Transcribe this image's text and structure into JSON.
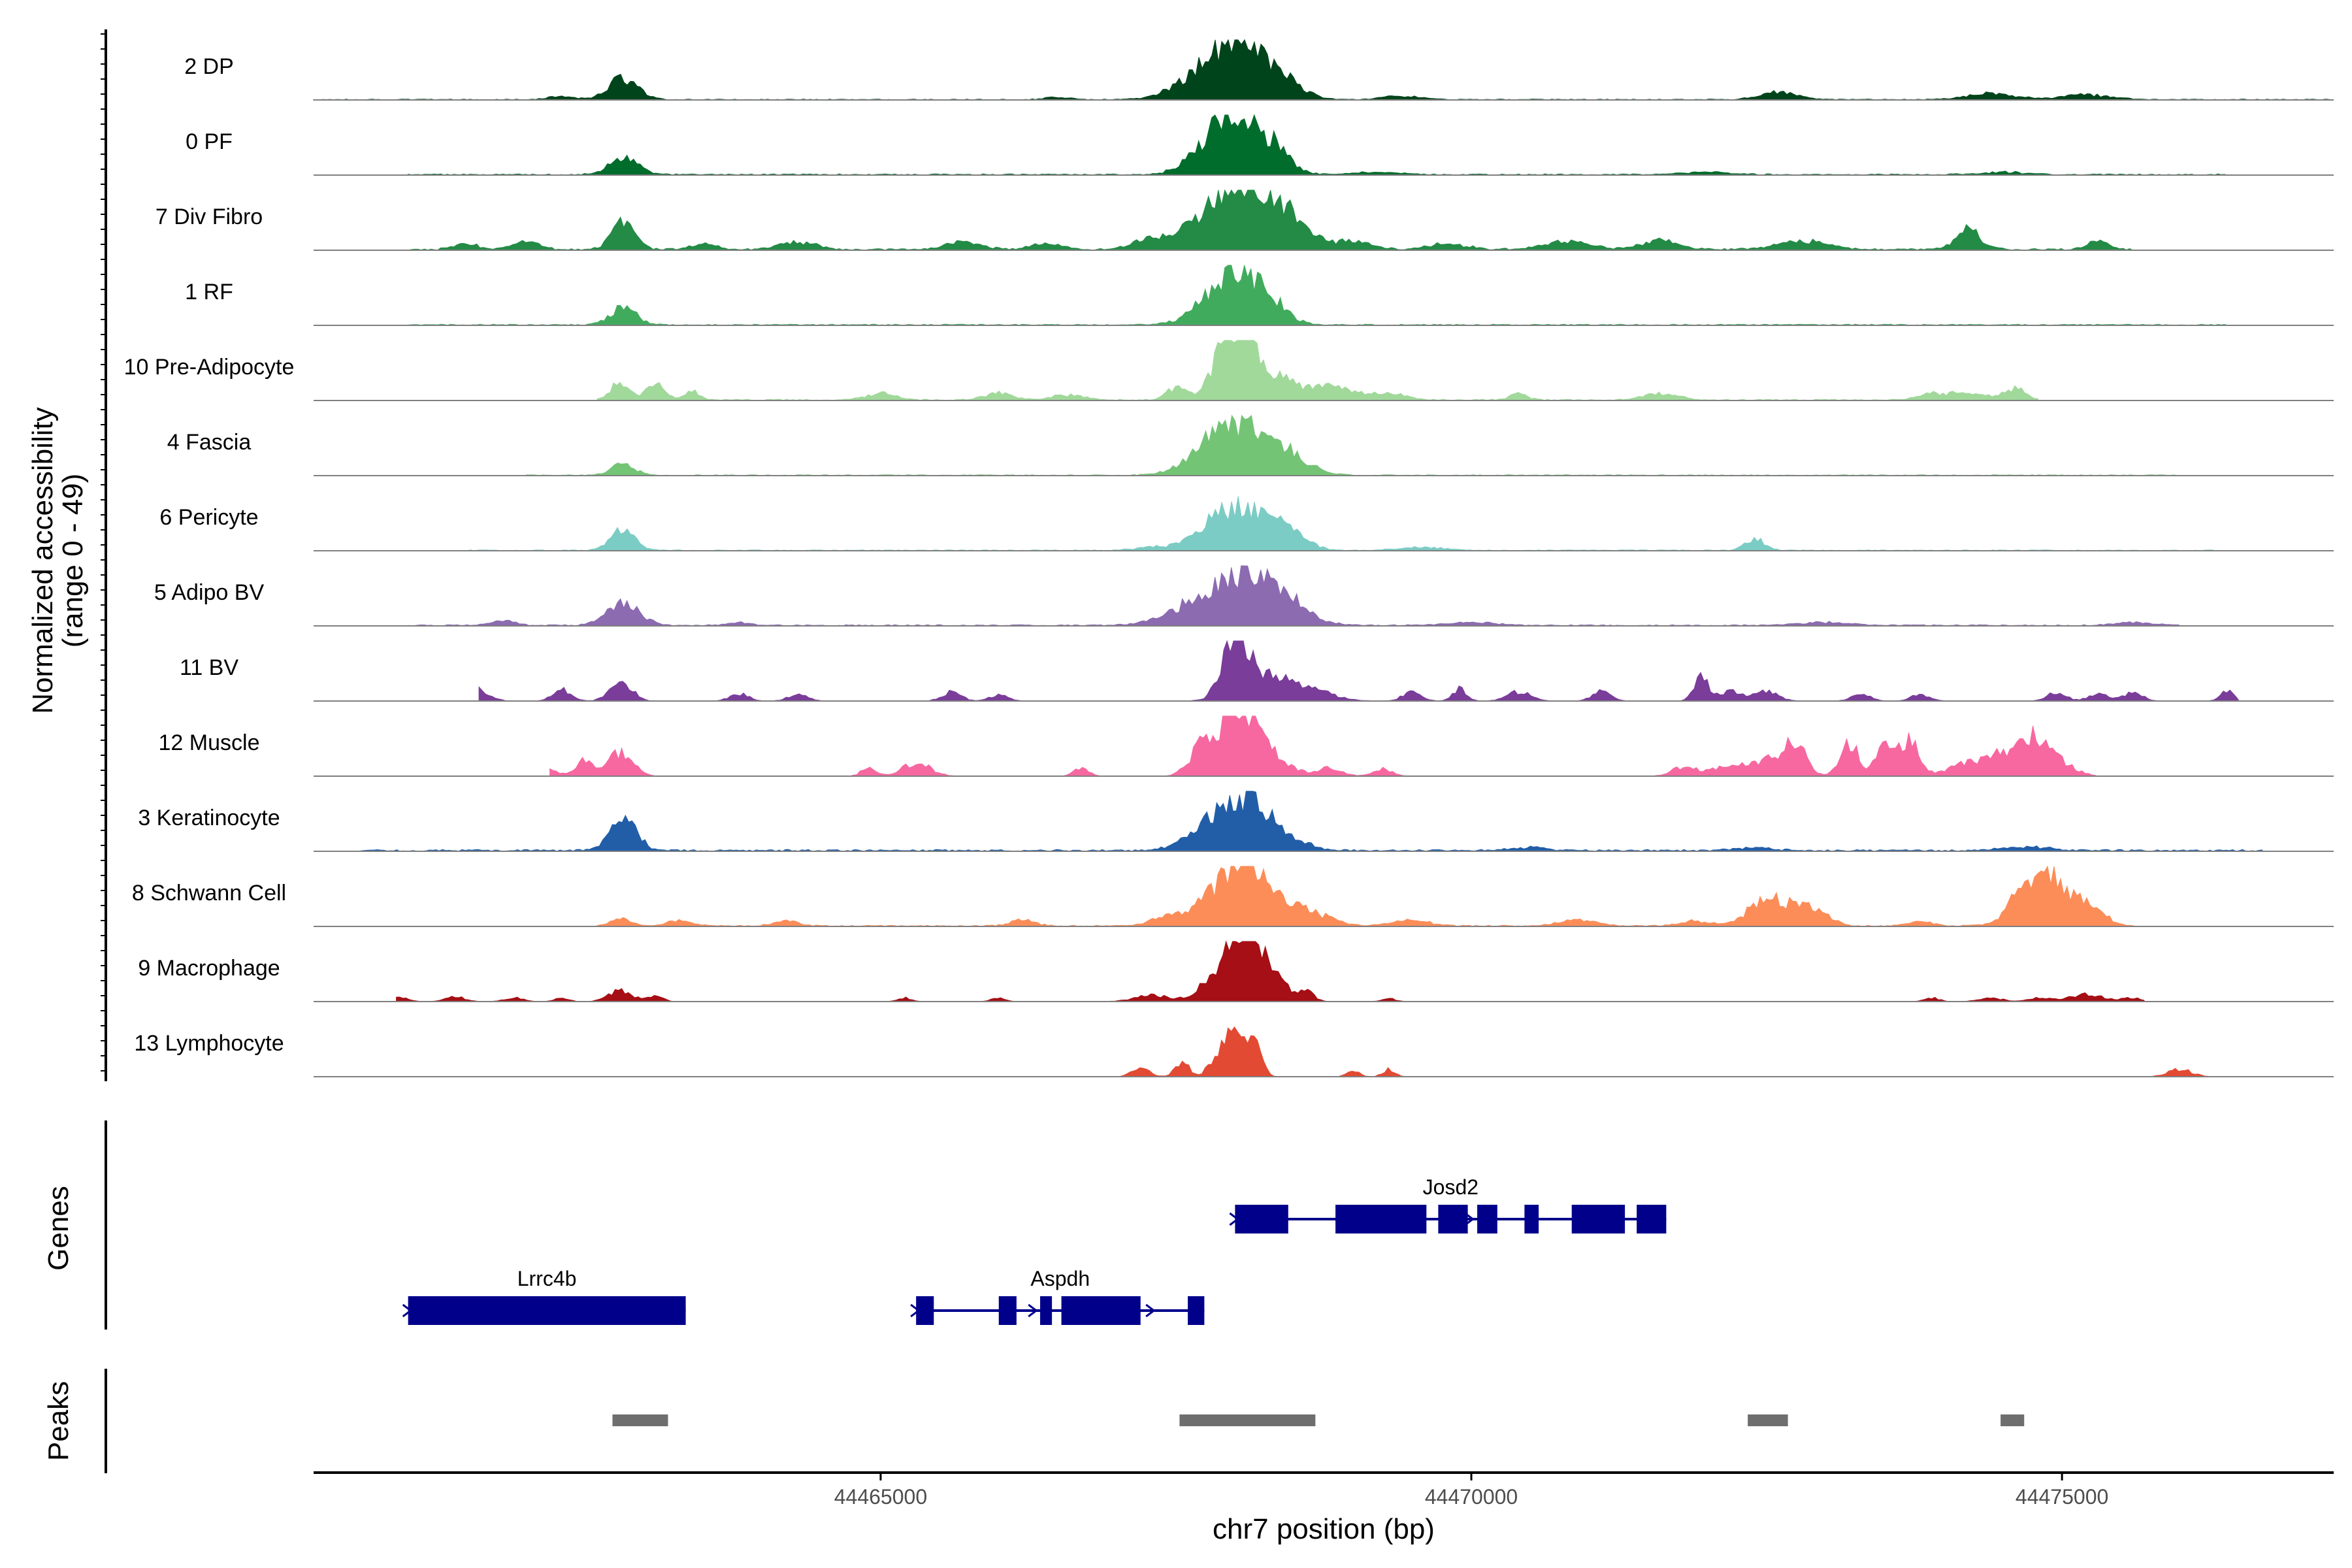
{
  "chart_data": {
    "type": "area",
    "chromosome": "chr7",
    "xlabel": "chr7 position (bp)",
    "ylabel_line1": "Normalized accessibility",
    "ylabel_line2": "(range 0 - 49)",
    "y_range": [
      0,
      49
    ],
    "xlim": [
      44460200,
      44477300
    ],
    "x_ticks": [
      44465000,
      44470000,
      44475000
    ],
    "x_tick_labels": [
      "44465000",
      "44470000",
      "44475000"
    ],
    "panel_labels": {
      "genes": "Genes",
      "peaks": "Peaks"
    },
    "tracks": [
      {
        "name": "2 DP",
        "color": "#00441b",
        "peaks": [
          [
            44462820,
            120,
            0.36
          ],
          [
            44468000,
            260,
            0.95
          ],
          [
            44468400,
            150,
            0.25
          ],
          [
            44467600,
            200,
            0.12
          ],
          [
            44469400,
            150,
            0.06
          ],
          [
            44472600,
            150,
            0.12
          ],
          [
            44474400,
            200,
            0.1
          ],
          [
            44475200,
            200,
            0.08
          ],
          [
            44462300,
            100,
            0.06
          ],
          [
            44466500,
            100,
            0.04
          ]
        ],
        "noise": 0.015,
        "span": [
          44460200,
          44477300
        ]
      },
      {
        "name": "0 PF",
        "color": "#006d2c",
        "peaks": [
          [
            44462820,
            120,
            0.28
          ],
          [
            44468000,
            230,
            1.0
          ],
          [
            44468350,
            120,
            0.2
          ],
          [
            44467700,
            150,
            0.08
          ],
          [
            44469200,
            200,
            0.04
          ],
          [
            44472000,
            200,
            0.04
          ],
          [
            44474500,
            200,
            0.04
          ]
        ],
        "noise": 0.02,
        "span": [
          44461000,
          44476400
        ]
      },
      {
        "name": "7 Div Fibro",
        "color": "#238b45",
        "peaks": [
          [
            44462820,
            100,
            0.42
          ],
          [
            44468000,
            300,
            1.0
          ],
          [
            44468400,
            200,
            0.4
          ],
          [
            44462000,
            100,
            0.15
          ],
          [
            44463500,
            100,
            0.1
          ],
          [
            44464300,
            150,
            0.12
          ],
          [
            44465700,
            150,
            0.12
          ],
          [
            44466400,
            120,
            0.1
          ],
          [
            44467300,
            150,
            0.15
          ],
          [
            44469000,
            150,
            0.15
          ],
          [
            44469800,
            150,
            0.1
          ],
          [
            44470800,
            200,
            0.12
          ],
          [
            44471600,
            150,
            0.15
          ],
          [
            44472800,
            200,
            0.15
          ],
          [
            44474200,
            60,
            0.35
          ],
          [
            44474200,
            150,
            0.1
          ],
          [
            44475300,
            100,
            0.12
          ],
          [
            44461500,
            100,
            0.1
          ]
        ],
        "noise": 0.03,
        "span": [
          44461000,
          44475600
        ]
      },
      {
        "name": "1 RF",
        "color": "#41ab5d",
        "peaks": [
          [
            44462820,
            110,
            0.28
          ],
          [
            44468000,
            220,
            0.85
          ],
          [
            44468300,
            150,
            0.2
          ],
          [
            44467700,
            150,
            0.05
          ]
        ],
        "noise": 0.02,
        "span": [
          44461000,
          44476400
        ]
      },
      {
        "name": "10 Pre-Adipocyte",
        "color": "#a1d99b",
        "peaks": [
          [
            44468000,
            140,
            1.0
          ],
          [
            44468200,
            250,
            0.45
          ],
          [
            44462800,
            80,
            0.3
          ],
          [
            44463100,
            80,
            0.25
          ],
          [
            44463400,
            60,
            0.15
          ],
          [
            44465000,
            120,
            0.12
          ],
          [
            44466000,
            120,
            0.12
          ],
          [
            44466600,
            150,
            0.08
          ],
          [
            44467500,
            80,
            0.2
          ],
          [
            44468800,
            200,
            0.2
          ],
          [
            44469300,
            150,
            0.1
          ],
          [
            44470400,
            80,
            0.1
          ],
          [
            44471600,
            150,
            0.1
          ],
          [
            44473900,
            120,
            0.1
          ],
          [
            44474200,
            150,
            0.1
          ],
          [
            44474600,
            100,
            0.18
          ]
        ],
        "noise": 0.02,
        "span": [
          44462600,
          44474800
        ]
      },
      {
        "name": "4 Fascia",
        "color": "#74c476",
        "peaks": [
          [
            44468000,
            260,
            0.78
          ],
          [
            44468400,
            200,
            0.3
          ],
          [
            44462820,
            100,
            0.18
          ],
          [
            44467700,
            150,
            0.08
          ]
        ],
        "noise": 0.015,
        "span": [
          44462000,
          44476000
        ]
      },
      {
        "name": "6 Pericyte",
        "color": "#7bccc4",
        "peaks": [
          [
            44462820,
            100,
            0.35
          ],
          [
            44468000,
            240,
            0.72
          ],
          [
            44468450,
            150,
            0.3
          ],
          [
            44472400,
            80,
            0.2
          ],
          [
            44467300,
            150,
            0.05
          ],
          [
            44469600,
            200,
            0.05
          ]
        ],
        "noise": 0.015,
        "span": [
          44461500,
          44476300
        ]
      },
      {
        "name": "5 Adipo BV",
        "color": "#8c6bb1",
        "peaks": [
          [
            44462820,
            140,
            0.35
          ],
          [
            44468000,
            300,
            0.75
          ],
          [
            44468400,
            200,
            0.3
          ],
          [
            44467500,
            200,
            0.1
          ],
          [
            44461800,
            100,
            0.08
          ],
          [
            44463800,
            100,
            0.05
          ],
          [
            44470000,
            200,
            0.05
          ],
          [
            44473000,
            200,
            0.05
          ],
          [
            44475600,
            150,
            0.05
          ]
        ],
        "noise": 0.02,
        "span": [
          44461000,
          44476000
        ]
      },
      {
        "name": "11 BV",
        "color": "#7a3d9a",
        "peaks": [
          [
            44468000,
            100,
            1.0
          ],
          [
            44468200,
            200,
            0.4
          ],
          [
            44462800,
            90,
            0.35
          ],
          [
            44461600,
            90,
            0.2
          ],
          [
            44462300,
            80,
            0.18
          ],
          [
            44463800,
            80,
            0.12
          ],
          [
            44464300,
            80,
            0.12
          ],
          [
            44465600,
            80,
            0.15
          ],
          [
            44466000,
            80,
            0.1
          ],
          [
            44468600,
            200,
            0.2
          ],
          [
            44469500,
            80,
            0.15
          ],
          [
            44469900,
            60,
            0.2
          ],
          [
            44470400,
            100,
            0.15
          ],
          [
            44471100,
            80,
            0.15
          ],
          [
            44471950,
            60,
            0.4
          ],
          [
            44472200,
            100,
            0.15
          ],
          [
            44472500,
            100,
            0.15
          ],
          [
            44473300,
            80,
            0.12
          ],
          [
            44473800,
            80,
            0.1
          ],
          [
            44474950,
            80,
            0.15
          ],
          [
            44475300,
            80,
            0.12
          ],
          [
            44475600,
            80,
            0.15
          ],
          [
            44476400,
            60,
            0.15
          ]
        ],
        "noise": 0.0,
        "span": [
          44461600,
          44476500
        ]
      },
      {
        "name": "12 Muscle",
        "color": "#f768a1",
        "peaks": [
          [
            44468000,
            170,
            1.0
          ],
          [
            44468250,
            180,
            0.35
          ],
          [
            44462800,
            100,
            0.4
          ],
          [
            44462500,
            90,
            0.25
          ],
          [
            44462200,
            60,
            0.1
          ],
          [
            44464900,
            60,
            0.15
          ],
          [
            44465300,
            120,
            0.22
          ],
          [
            44466700,
            60,
            0.15
          ],
          [
            44467700,
            100,
            0.3
          ],
          [
            44468800,
            100,
            0.15
          ],
          [
            44469250,
            80,
            0.12
          ],
          [
            44471800,
            100,
            0.15
          ],
          [
            44472200,
            150,
            0.2
          ],
          [
            44472600,
            150,
            0.3
          ],
          [
            44472750,
            80,
            0.45
          ],
          [
            44473200,
            80,
            0.55
          ],
          [
            44473500,
            80,
            0.42
          ],
          [
            44473700,
            90,
            0.6
          ],
          [
            44474200,
            150,
            0.2
          ],
          [
            44474500,
            150,
            0.3
          ],
          [
            44474750,
            120,
            0.55
          ],
          [
            44475000,
            120,
            0.2
          ]
        ],
        "noise": 0.0,
        "span": [
          44462200,
          44475300
        ]
      },
      {
        "name": "3 Keratinocyte",
        "color": "#225ea8",
        "peaks": [
          [
            44462820,
            110,
            0.55
          ],
          [
            44468000,
            220,
            0.85
          ],
          [
            44468350,
            200,
            0.25
          ],
          [
            44467600,
            150,
            0.08
          ],
          [
            44470500,
            150,
            0.05
          ],
          [
            44472400,
            150,
            0.05
          ],
          [
            44474700,
            200,
            0.06
          ]
        ],
        "noise": 0.03,
        "span": [
          44460600,
          44476700
        ]
      },
      {
        "name": "8 Schwann Cell",
        "color": "#fc8d59",
        "peaks": [
          [
            44468000,
            240,
            0.85
          ],
          [
            44468300,
            200,
            0.35
          ],
          [
            44468700,
            150,
            0.15
          ],
          [
            44462800,
            80,
            0.12
          ],
          [
            44463300,
            100,
            0.1
          ],
          [
            44464200,
            100,
            0.08
          ],
          [
            44466200,
            100,
            0.1
          ],
          [
            44467400,
            120,
            0.15
          ],
          [
            44469500,
            150,
            0.1
          ],
          [
            44470900,
            150,
            0.1
          ],
          [
            44471900,
            120,
            0.08
          ],
          [
            44472500,
            150,
            0.45
          ],
          [
            44472850,
            150,
            0.3
          ],
          [
            44474900,
            180,
            0.7
          ],
          [
            44474700,
            150,
            0.4
          ],
          [
            44475250,
            120,
            0.3
          ],
          [
            44473800,
            100,
            0.08
          ]
        ],
        "noise": 0.02,
        "span": [
          44462600,
          44475700
        ]
      },
      {
        "name": "9 Macrophage",
        "color": "#a50f15",
        "peaks": [
          [
            44468000,
            150,
            1.0
          ],
          [
            44468250,
            150,
            0.5
          ],
          [
            44468600,
            60,
            0.2
          ],
          [
            44462800,
            100,
            0.18
          ],
          [
            44463100,
            60,
            0.1
          ],
          [
            44460900,
            80,
            0.1
          ],
          [
            44461400,
            80,
            0.08
          ],
          [
            44461900,
            80,
            0.06
          ],
          [
            44462300,
            60,
            0.06
          ],
          [
            44465200,
            60,
            0.06
          ],
          [
            44466000,
            60,
            0.06
          ],
          [
            44467300,
            150,
            0.1
          ],
          [
            44467700,
            100,
            0.1
          ],
          [
            44469300,
            60,
            0.05
          ],
          [
            44473900,
            60,
            0.06
          ],
          [
            44474400,
            100,
            0.06
          ],
          [
            44474800,
            80,
            0.06
          ],
          [
            44475200,
            150,
            0.12
          ],
          [
            44475600,
            80,
            0.06
          ]
        ],
        "noise": 0.0,
        "span": [
          44460900,
          44475700
        ]
      },
      {
        "name": "13 Lymphocyte",
        "color": "#e34a33",
        "peaks": [
          [
            44467950,
            70,
            0.85
          ],
          [
            44468100,
            60,
            0.5
          ],
          [
            44468200,
            50,
            0.35
          ],
          [
            44467200,
            70,
            0.15
          ],
          [
            44467550,
            60,
            0.25
          ],
          [
            44467800,
            50,
            0.2
          ],
          [
            44469000,
            50,
            0.12
          ],
          [
            44469300,
            50,
            0.12
          ],
          [
            44476000,
            100,
            0.12
          ]
        ],
        "noise": 0.0,
        "span": [
          44467000,
          44476300
        ]
      }
    ],
    "genes": [
      {
        "name": "Josd2",
        "color": "#00008b",
        "start": 44468000,
        "end": 44471650,
        "exons": [
          [
            44468000,
            44468450
          ],
          [
            44468850,
            44469620
          ],
          [
            44469720,
            44469970
          ],
          [
            44470050,
            44470220
          ],
          [
            44470450,
            44470570
          ],
          [
            44470850,
            44471300
          ],
          [
            44471400,
            44471650
          ]
        ]
      },
      {
        "name": "Lrrc4b",
        "color": "#00008b",
        "start": 44461000,
        "end": 44463350,
        "exons": [
          [
            44461000,
            44463350
          ]
        ]
      },
      {
        "name": "Aspdh",
        "color": "#00008b",
        "start": 44465300,
        "end": 44467740,
        "exons": [
          [
            44465300,
            44465450
          ],
          [
            44466000,
            44466150
          ],
          [
            44466350,
            44466450
          ],
          [
            44466530,
            44467200
          ],
          [
            44467600,
            44467740
          ]
        ]
      }
    ],
    "peaks": [
      [
        44462730,
        44463200
      ],
      [
        44467530,
        44468680
      ],
      [
        44472340,
        44472680
      ],
      [
        44474480,
        44474680
      ]
    ],
    "peak_color": "#6e6e6e"
  }
}
